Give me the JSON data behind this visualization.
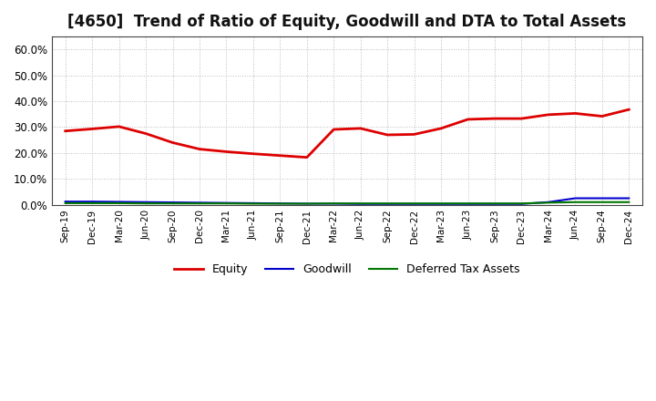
{
  "title": "[4650]  Trend of Ratio of Equity, Goodwill and DTA to Total Assets",
  "x_labels": [
    "Sep-19",
    "Dec-19",
    "Mar-20",
    "Jun-20",
    "Sep-20",
    "Dec-20",
    "Mar-21",
    "Jun-21",
    "Sep-21",
    "Dec-21",
    "Mar-22",
    "Jun-22",
    "Sep-22",
    "Dec-22",
    "Mar-23",
    "Jun-23",
    "Sep-23",
    "Dec-23",
    "Mar-24",
    "Jun-24",
    "Sep-24",
    "Dec-24"
  ],
  "equity": [
    0.285,
    0.293,
    0.302,
    0.275,
    0.24,
    0.215,
    0.205,
    0.197,
    0.19,
    0.183,
    0.291,
    0.295,
    0.27,
    0.272,
    0.295,
    0.33,
    0.333,
    0.333,
    0.348,
    0.353,
    0.342,
    0.368
  ],
  "goodwill": [
    0.012,
    0.012,
    0.011,
    0.01,
    0.009,
    0.008,
    0.007,
    0.006,
    0.005,
    0.004,
    0.004,
    0.003,
    0.003,
    0.003,
    0.003,
    0.003,
    0.003,
    0.003,
    0.01,
    0.025,
    0.025,
    0.025
  ],
  "dta": [
    0.006,
    0.006,
    0.006,
    0.005,
    0.005,
    0.005,
    0.005,
    0.004,
    0.004,
    0.004,
    0.005,
    0.005,
    0.005,
    0.005,
    0.005,
    0.005,
    0.005,
    0.005,
    0.008,
    0.01,
    0.01,
    0.01
  ],
  "equity_color": "#dd0000",
  "goodwill_color": "#0000cc",
  "dta_color": "#007700",
  "background_color": "#ffffff",
  "plot_bg_color": "#ffffff",
  "ylim": [
    0.0,
    0.65
  ],
  "yticks": [
    0.0,
    0.1,
    0.2,
    0.3,
    0.4,
    0.5,
    0.6
  ],
  "grid_color": "#bbbbbb",
  "title_fontsize": 12,
  "legend_labels": [
    "Equity",
    "Goodwill",
    "Deferred Tax Assets"
  ]
}
